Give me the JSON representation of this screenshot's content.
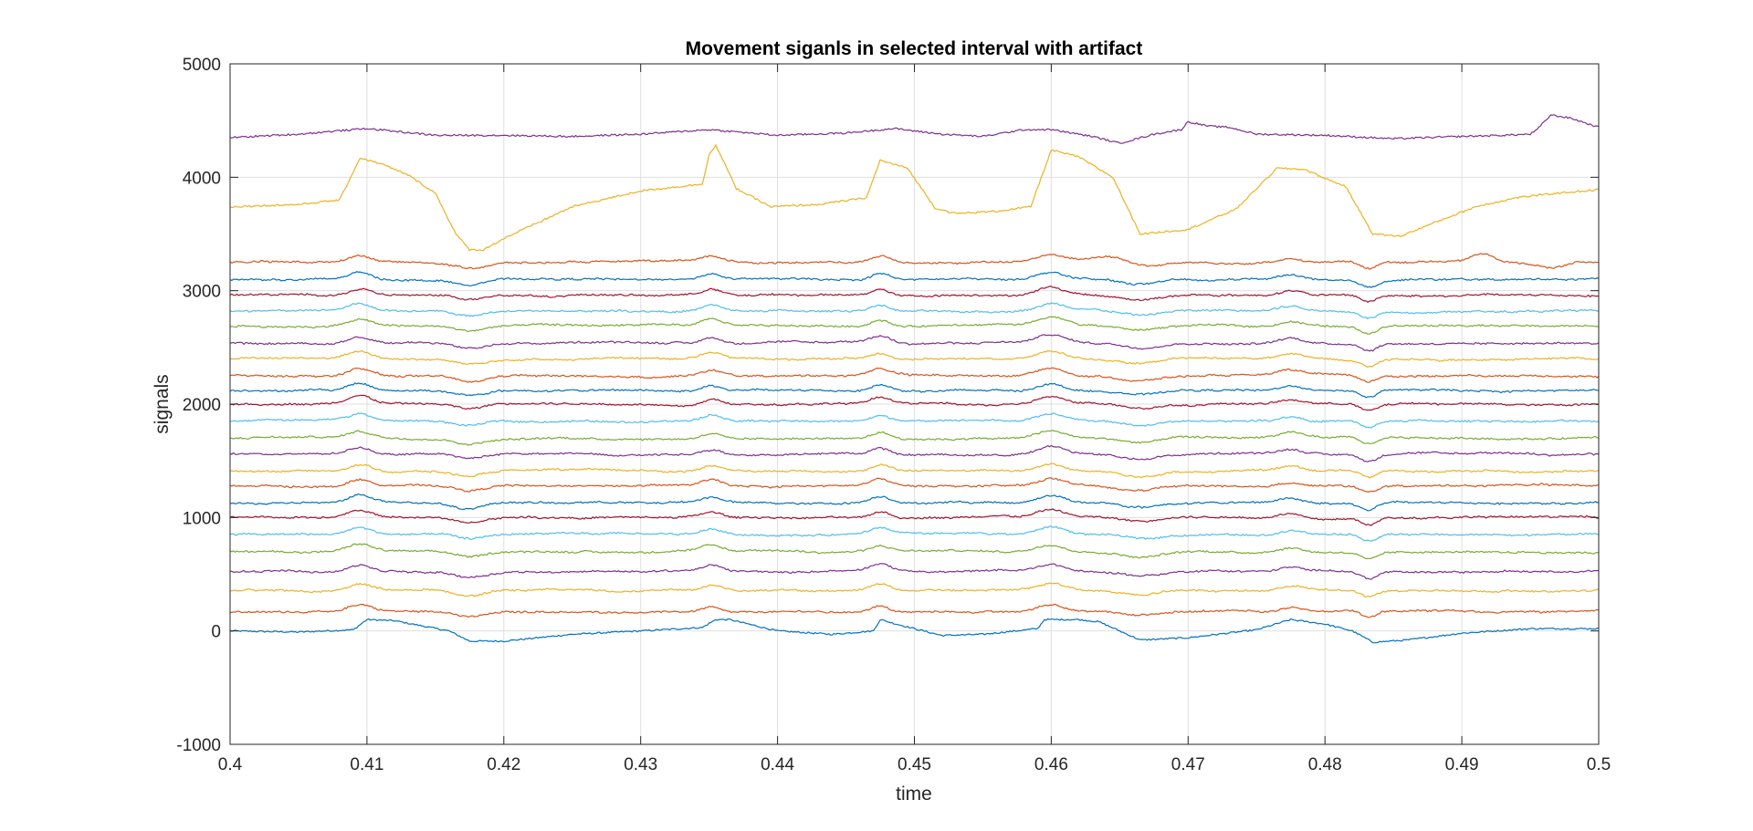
{
  "chart_data": {
    "type": "line",
    "title": "Movement siganls in selected interval with artifact",
    "xlabel": "time",
    "ylabel": "signals",
    "xlim": [
      0.4,
      0.5
    ],
    "ylim": [
      -1000,
      5000
    ],
    "xticks": [
      0.4,
      0.41,
      0.42,
      0.43,
      0.44,
      0.45,
      0.46,
      0.47,
      0.48,
      0.49,
      0.5
    ],
    "xtick_labels": [
      "0.4",
      "0.41",
      "0.42",
      "0.43",
      "0.44",
      "0.45",
      "0.46",
      "0.47",
      "0.48",
      "0.49",
      "0.5"
    ],
    "yticks": [
      -1000,
      0,
      1000,
      2000,
      3000,
      4000,
      5000
    ],
    "ytick_labels": [
      "-1000",
      "0",
      "1000",
      "2000",
      "3000",
      "4000",
      "5000"
    ],
    "grid": true,
    "legend": "none",
    "colors": [
      "#0072BD",
      "#D95319",
      "#EDB120",
      "#7E2F8E",
      "#77AC30",
      "#4DBEEE",
      "#A2142F"
    ],
    "channel_count": 25,
    "channel_offsets": [
      0,
      170,
      355,
      525,
      700,
      850,
      1000,
      1130,
      1280,
      1410,
      1560,
      1700,
      1850,
      2000,
      2120,
      2250,
      2400,
      2540,
      2690,
      2820,
      2960,
      3100,
      3250,
      3730,
      4350
    ],
    "channel_colors": [
      "#0072BD",
      "#D95319",
      "#EDB120",
      "#7E2F8E",
      "#77AC30",
      "#4DBEEE",
      "#A2142F",
      "#0072BD",
      "#D95319",
      "#EDB120",
      "#7E2F8E",
      "#77AC30",
      "#4DBEEE",
      "#A2142F",
      "#0072BD",
      "#D95319",
      "#EDB120",
      "#7E2F8E",
      "#77AC30",
      "#4DBEEE",
      "#A2142F",
      "#0072BD",
      "#D95319",
      "#EDB120",
      "#7E2F8E"
    ],
    "artifact_times": [
      0.4095,
      0.4352,
      0.4475,
      0.46,
      0.4775,
      0.4832
    ],
    "series_bottom": {
      "x": [
        0.4,
        0.405,
        0.409,
        0.41,
        0.412,
        0.416,
        0.4175,
        0.42,
        0.425,
        0.43,
        0.4345,
        0.4355,
        0.4365,
        0.44,
        0.444,
        0.447,
        0.4475,
        0.449,
        0.452,
        0.455,
        0.459,
        0.4595,
        0.462,
        0.4635,
        0.465,
        0.4665,
        0.47,
        0.475,
        0.4775,
        0.48,
        0.482,
        0.4835,
        0.486,
        0.49,
        0.495,
        0.5
      ],
      "y": [
        0,
        -10,
        10,
        100,
        90,
        0,
        -90,
        -90,
        -30,
        0,
        30,
        100,
        100,
        0,
        -30,
        0,
        100,
        50,
        -40,
        -30,
        20,
        100,
        100,
        80,
        0,
        -80,
        -60,
        10,
        100,
        60,
        0,
        -100,
        -80,
        -20,
        20,
        20
      ]
    },
    "series_orange": {
      "x": [
        0.4,
        0.405,
        0.408,
        0.4095,
        0.411,
        0.413,
        0.415,
        0.4165,
        0.4175,
        0.4185,
        0.42,
        0.425,
        0.43,
        0.4345,
        0.435,
        0.4355,
        0.437,
        0.4395,
        0.443,
        0.4465,
        0.4475,
        0.4495,
        0.4515,
        0.453,
        0.456,
        0.4585,
        0.46,
        0.462,
        0.4645,
        0.4665,
        0.47,
        0.4735,
        0.4765,
        0.4785,
        0.48,
        0.4815,
        0.4835,
        0.4855,
        0.488,
        0.491,
        0.494,
        0.497,
        0.5
      ],
      "y": [
        3740,
        3760,
        3800,
        4170,
        4120,
        4020,
        3860,
        3500,
        3360,
        3360,
        3460,
        3740,
        3880,
        3940,
        4200,
        4280,
        3900,
        3740,
        3760,
        3820,
        4150,
        4080,
        3730,
        3680,
        3700,
        3740,
        4240,
        4180,
        4000,
        3500,
        3540,
        3720,
        4080,
        4070,
        3990,
        3920,
        3500,
        3480,
        3600,
        3740,
        3820,
        3860,
        3890
      ]
    },
    "series_top": {
      "x": [
        0.4,
        0.405,
        0.41,
        0.415,
        0.42,
        0.425,
        0.43,
        0.435,
        0.44,
        0.445,
        0.4485,
        0.452,
        0.455,
        0.458,
        0.46,
        0.463,
        0.465,
        0.4675,
        0.4695,
        0.47,
        0.4715,
        0.473,
        0.475,
        0.48,
        0.485,
        0.49,
        0.493,
        0.495,
        0.4955,
        0.4965,
        0.498,
        0.5
      ],
      "y": [
        4350,
        4380,
        4430,
        4370,
        4370,
        4360,
        4380,
        4420,
        4370,
        4390,
        4430,
        4380,
        4360,
        4420,
        4420,
        4360,
        4300,
        4380,
        4420,
        4490,
        4450,
        4440,
        4380,
        4370,
        4340,
        4360,
        4370,
        4380,
        4420,
        4550,
        4520,
        4440
      ]
    }
  }
}
